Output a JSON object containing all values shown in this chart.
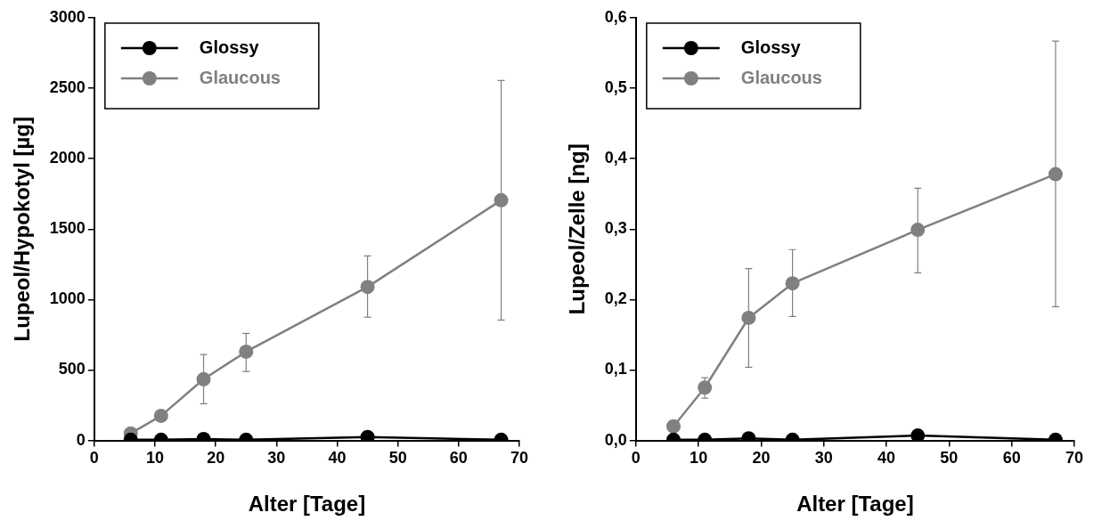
{
  "chart_data": [
    {
      "type": "line",
      "xlabel": "Alter [Tage]",
      "ylabel": "Lupeol/Hypokotyl [µg]",
      "x": [
        6,
        11,
        18,
        25,
        45,
        67
      ],
      "xlim": [
        0,
        70
      ],
      "xticks": [
        0,
        10,
        20,
        30,
        40,
        50,
        60,
        70
      ],
      "ylim": [
        0,
        3000
      ],
      "yticks": [
        0,
        500,
        1000,
        1500,
        2000,
        2500,
        3000
      ],
      "grid": false,
      "legend": "top left",
      "marker": "circle",
      "line_style": "solid",
      "series": [
        {
          "name": "Glossy",
          "color": "#000000",
          "values": [
            5,
            5,
            10,
            5,
            25,
            5
          ]
        },
        {
          "name": "Glaucous",
          "color": "#808080",
          "values": [
            50,
            175,
            435,
            630,
            1090,
            1705
          ],
          "errors": [
            null,
            null,
            [
              260,
              610
            ],
            [
              490,
              760
            ],
            [
              875,
              1310
            ],
            [
              855,
              2555
            ]
          ]
        }
      ]
    },
    {
      "type": "line",
      "xlabel": "Alter [Tage]",
      "ylabel": "Lupeol/Zelle [ng]",
      "x": [
        6,
        11,
        18,
        25,
        45,
        67
      ],
      "xlim": [
        0,
        70
      ],
      "xticks": [
        0,
        10,
        20,
        30,
        40,
        50,
        60,
        70
      ],
      "ylim": [
        0,
        0.6
      ],
      "yticks": [
        {
          "value": 0,
          "label": "0,0"
        },
        {
          "value": 0.1,
          "label": "0,1"
        },
        {
          "value": 0.2,
          "label": "0,2"
        },
        {
          "value": 0.3,
          "label": "0,3"
        },
        {
          "value": 0.4,
          "label": "0,4"
        },
        {
          "value": 0.5,
          "label": "0,5"
        },
        {
          "value": 0.6,
          "label": "0,6"
        }
      ],
      "grid": false,
      "legend": "top left",
      "marker": "circle",
      "line_style": "solid",
      "series": [
        {
          "name": "Glossy",
          "color": "#000000",
          "values": [
            0.001,
            0.001,
            0.003,
            0.001,
            0.007,
            0.001
          ]
        },
        {
          "name": "Glaucous",
          "color": "#808080",
          "values": [
            0.02,
            0.075,
            0.174,
            0.223,
            0.299,
            0.378
          ],
          "errors": [
            null,
            [
              0.06,
              0.089
            ],
            [
              0.104,
              0.244
            ],
            [
              0.176,
              0.271
            ],
            [
              0.238,
              0.358
            ],
            [
              0.19,
              0.567
            ]
          ]
        }
      ]
    }
  ]
}
